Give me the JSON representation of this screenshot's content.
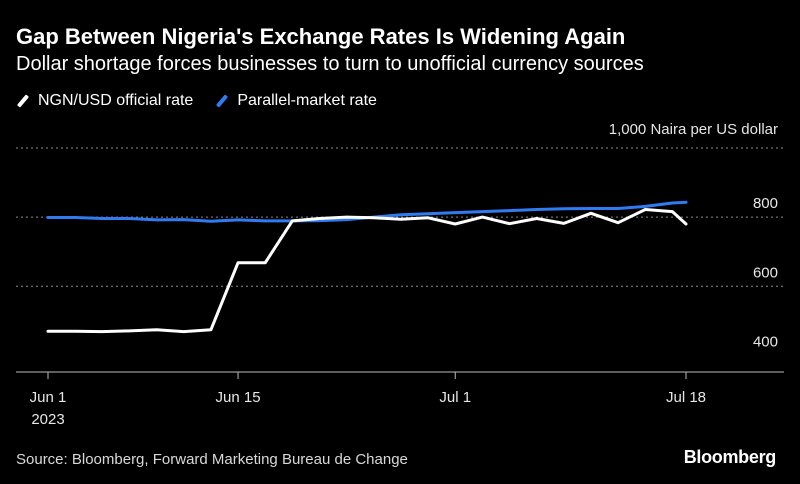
{
  "chart_data": {
    "type": "line",
    "title": "Gap Between Nigeria's Exchange Rates Is Widening Again",
    "subtitle": "Dollar shortage forces businesses to turn to unofficial currency sources",
    "ylabel": "1,000 Naira per US dollar",
    "ylim": [
      352,
      1000
    ],
    "yticks": [
      400,
      600,
      800
    ],
    "ytick_labels": [
      "400",
      "600",
      "800"
    ],
    "gridlines_at": [
      600,
      800,
      1000
    ],
    "x_tick_days": [
      0,
      14,
      30,
      47
    ],
    "x_tick_labels": [
      "Jun 1",
      "Jun 15",
      "Jul 1",
      "Jul 18"
    ],
    "x_year_label": "2023",
    "x_range_days": [
      0,
      50
    ],
    "series": [
      {
        "name": "NGN/USD official rate",
        "color": "#ffffff",
        "x_days": [
          0,
          2,
          4,
          6,
          8,
          10,
          12,
          14,
          16,
          18,
          20,
          22,
          24,
          26,
          28,
          30,
          32,
          34,
          36,
          38,
          40,
          42,
          44,
          46,
          47
        ],
        "values": [
          470,
          470,
          469,
          471,
          474,
          469,
          474,
          668,
          668,
          789,
          796,
          800,
          798,
          794,
          798,
          780,
          800,
          781,
          796,
          782,
          811,
          784,
          822,
          816,
          780
        ]
      },
      {
        "name": "Parallel-market rate",
        "color": "#2f7bf2",
        "x_days": [
          0,
          2,
          4,
          6,
          8,
          10,
          12,
          14,
          16,
          18,
          20,
          22,
          24,
          26,
          28,
          30,
          32,
          34,
          36,
          38,
          40,
          42,
          44,
          46,
          47
        ],
        "values": [
          799,
          799,
          796,
          796,
          792,
          793,
          788,
          792,
          789,
          789,
          790,
          793,
          800,
          807,
          810,
          813,
          816,
          819,
          822,
          824,
          825,
          825,
          831,
          841,
          843
        ]
      }
    ]
  },
  "source": "Source: Bloomberg, Forward Marketing Bureau de Change",
  "brand": "Bloomberg"
}
